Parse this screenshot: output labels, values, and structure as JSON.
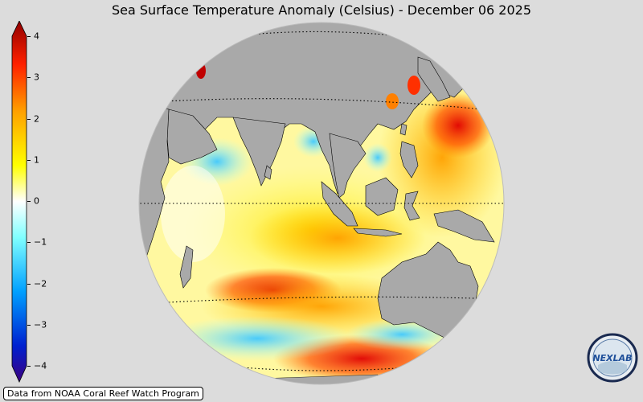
{
  "title": "Sea Surface Temperature Anomaly (Celsius) - December 06 2025",
  "colorbar": {
    "min": -4,
    "max": 4,
    "ticks": [
      "4",
      "3",
      "2",
      "1",
      "0",
      "−1",
      "−2",
      "−3",
      "−4"
    ],
    "tick_values": [
      4,
      3,
      2,
      1,
      0,
      -1,
      -2,
      -3,
      -4
    ],
    "colors": [
      "#3b0080",
      "#0020d0",
      "#00a0ff",
      "#80ffff",
      "#ffffff",
      "#ffff00",
      "#ffa000",
      "#ff2000",
      "#900000"
    ]
  },
  "map": {
    "land_color": "#a9a9a9",
    "ocean_neutral": "#ffffff",
    "background": "#dcdcdc"
  },
  "source": "Data from NOAA Coral Reef Watch Program",
  "logo": {
    "text": "NEXLAB",
    "icon": "nexlab-logo-icon"
  }
}
